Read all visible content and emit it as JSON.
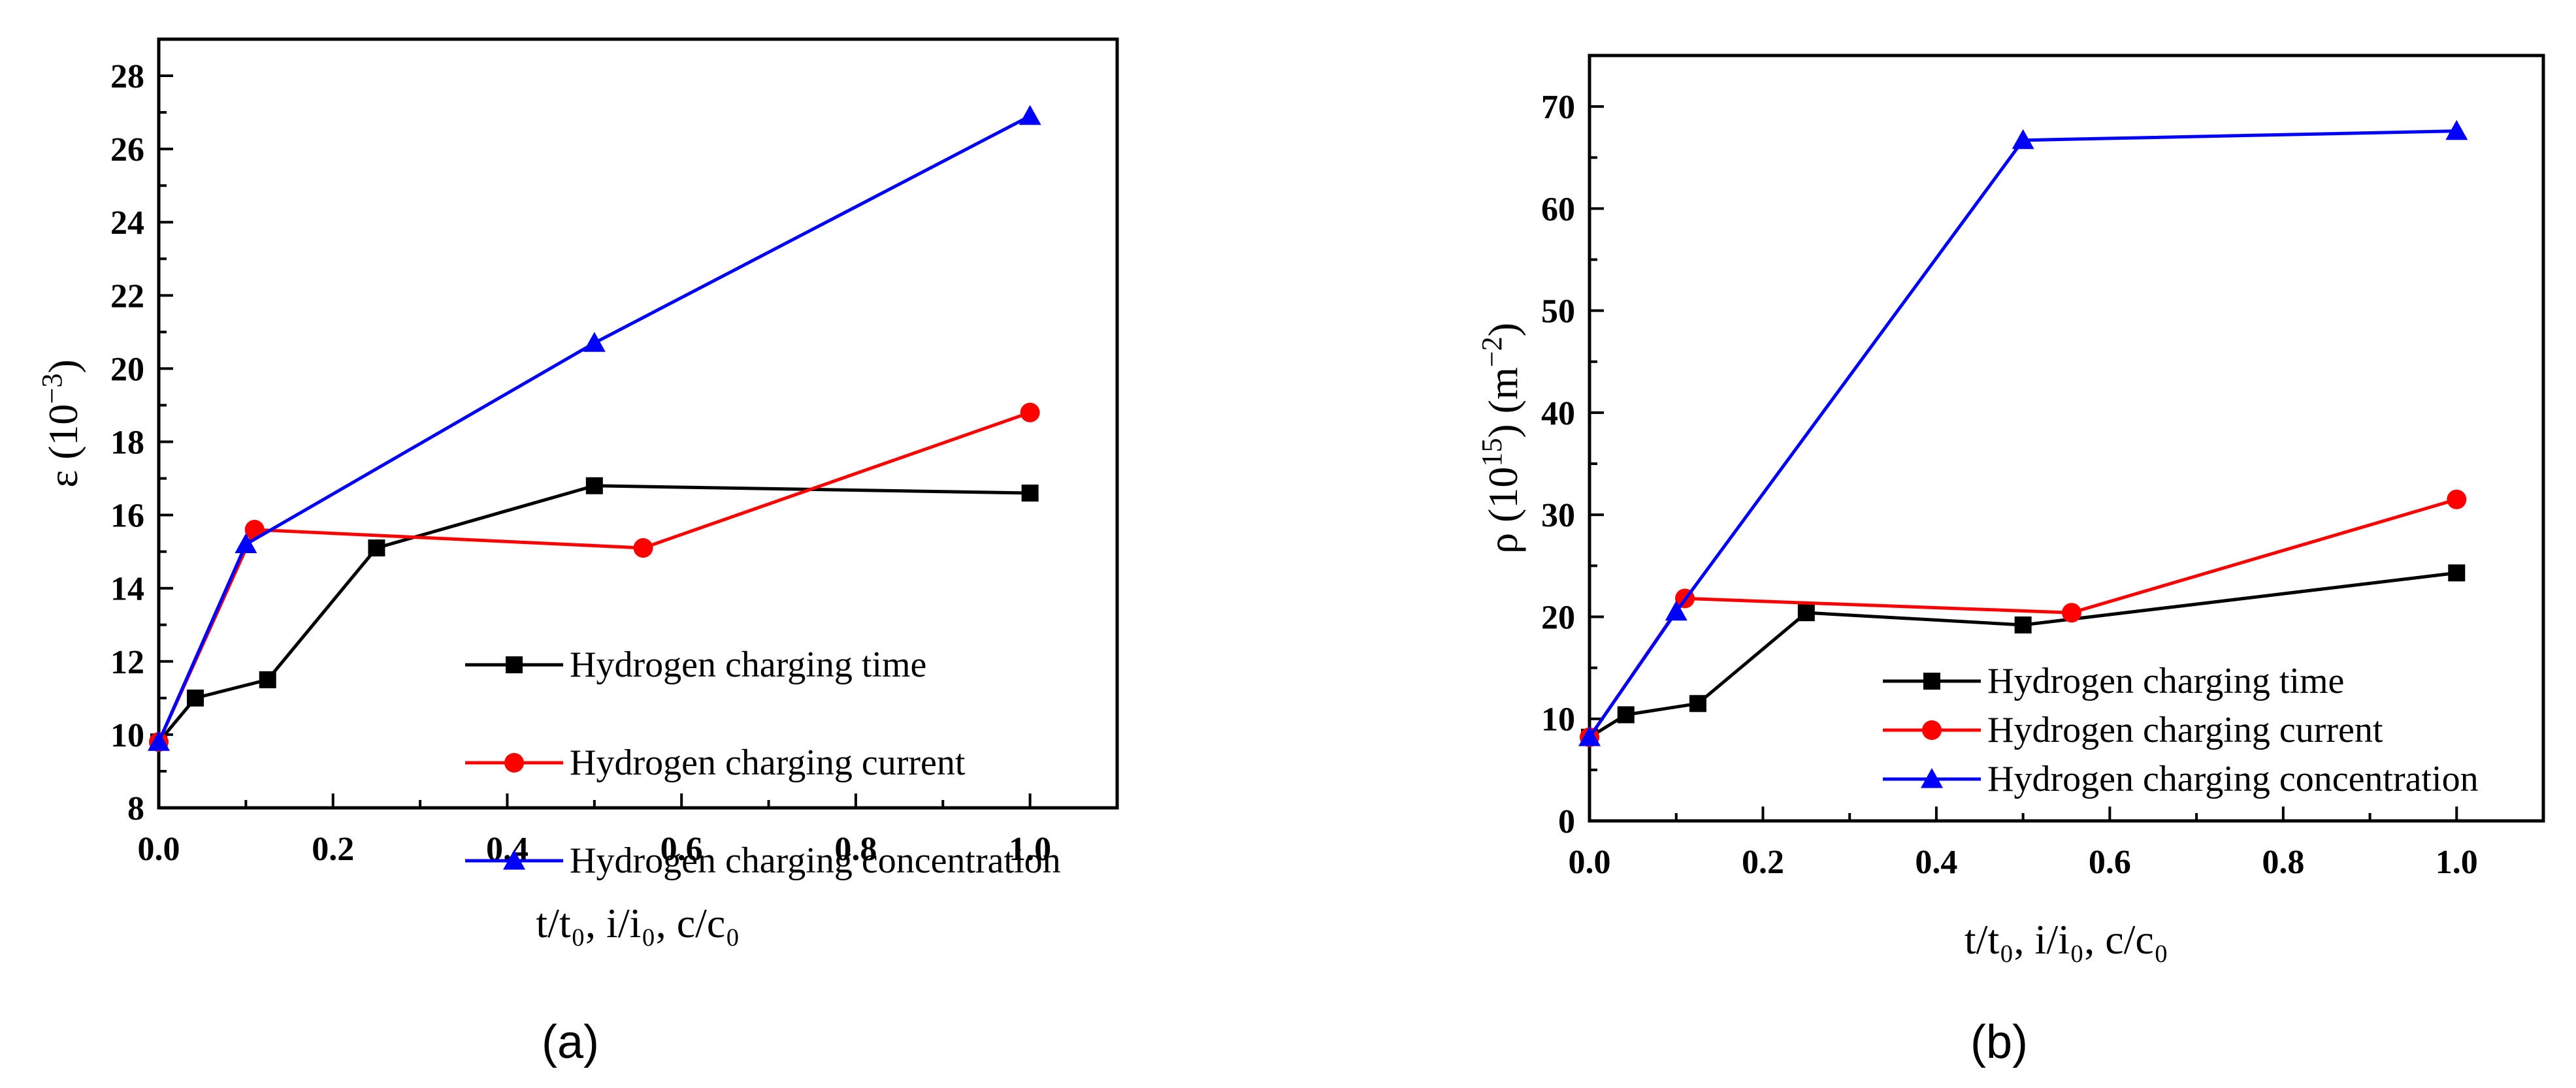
{
  "colors": {
    "time": "#000000",
    "current": "#ff0000",
    "concentration": "#0000ff"
  },
  "chart_data": [
    {
      "type": "line",
      "panel_label": "(a)",
      "ylabel_main": "ε (10",
      "ylabel_sup": "−3",
      "ylabel_end": ")",
      "xlabel": "t/t₀, i/i₀, c/c₀",
      "xlim": [
        0,
        1.1
      ],
      "ylim": [
        8,
        29
      ],
      "xticks": [
        "0.0",
        "0.2",
        "0.4",
        "0.6",
        "0.8",
        "1.0"
      ],
      "yticks": [
        "8",
        "10",
        "12",
        "14",
        "16",
        "18",
        "20",
        "22",
        "24",
        "26",
        "28"
      ],
      "legend_position": "bottom-right",
      "series": [
        {
          "name": "Hydrogen charging time",
          "marker": "square",
          "color": "#000000",
          "x": [
            0,
            0.042,
            0.125,
            0.25,
            0.5,
            1.0
          ],
          "y": [
            9.8,
            11.0,
            11.5,
            15.1,
            16.8,
            16.6
          ]
        },
        {
          "name": "Hydrogen charging current",
          "marker": "circle",
          "color": "#ff0000",
          "x": [
            0,
            0.11,
            0.556,
            1.0
          ],
          "y": [
            9.8,
            15.6,
            15.1,
            18.8
          ]
        },
        {
          "name": "Hydrogen charging concentration",
          "marker": "triangle",
          "color": "#0000ff",
          "x": [
            0,
            0.1,
            0.5,
            1.0
          ],
          "y": [
            9.8,
            15.2,
            20.7,
            26.9
          ]
        }
      ]
    },
    {
      "type": "line",
      "panel_label": "(b)",
      "ylabel_main": "ρ (10",
      "ylabel_sup": "15",
      "ylabel_mid": ") (m",
      "ylabel_sup2": "−2",
      "ylabel_end": ")",
      "xlabel": "t/t₀, i/i₀, c/c₀",
      "xlim": [
        0,
        1.1
      ],
      "ylim": [
        0,
        75
      ],
      "xticks": [
        "0.0",
        "0.2",
        "0.4",
        "0.6",
        "0.8",
        "1.0"
      ],
      "yticks": [
        "0",
        "10",
        "20",
        "30",
        "40",
        "50",
        "60",
        "70"
      ],
      "legend_position": "bottom-right",
      "series": [
        {
          "name": "Hydrogen charging time",
          "marker": "square",
          "color": "#000000",
          "x": [
            0,
            0.042,
            0.125,
            0.25,
            0.5,
            1.0
          ],
          "y": [
            8.2,
            10.4,
            11.5,
            20.4,
            19.2,
            24.3
          ]
        },
        {
          "name": "Hydrogen charging current",
          "marker": "circle",
          "color": "#ff0000",
          "x": [
            0,
            0.11,
            0.556,
            1.0
          ],
          "y": [
            8.2,
            21.8,
            20.4,
            31.5
          ]
        },
        {
          "name": "Hydrogen charging concentration",
          "marker": "triangle",
          "color": "#0000ff",
          "x": [
            0,
            0.1,
            0.5,
            1.0
          ],
          "y": [
            8.2,
            20.5,
            66.7,
            67.6
          ]
        }
      ]
    }
  ]
}
